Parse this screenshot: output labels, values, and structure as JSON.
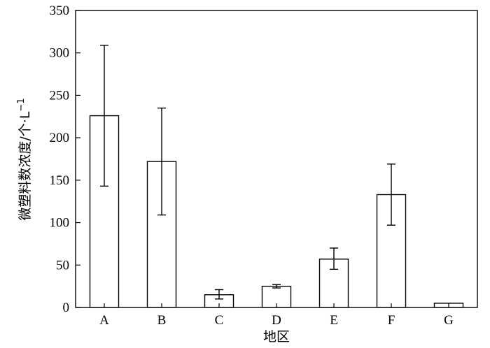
{
  "chart_data": {
    "type": "bar",
    "title": "",
    "xlabel": "地区",
    "ylabel": "微塑料数浓度/个·L",
    "ylabel_superscript": "−1",
    "categories": [
      "A",
      "B",
      "C",
      "D",
      "E",
      "F",
      "G"
    ],
    "values": [
      226,
      172,
      15,
      25,
      57,
      133,
      5
    ],
    "errors": [
      [
        143,
        309
      ],
      [
        109,
        235
      ],
      [
        10,
        21
      ],
      [
        23,
        27
      ],
      [
        45,
        70
      ],
      [
        97,
        169
      ],
      null
    ],
    "ylim": [
      0,
      350
    ],
    "yticks": [
      0,
      50,
      100,
      150,
      200,
      250,
      300,
      350
    ],
    "grid": false,
    "legend": "none",
    "colors": {
      "bar_fill": "#ffffff",
      "bar_stroke": "#000000"
    }
  }
}
